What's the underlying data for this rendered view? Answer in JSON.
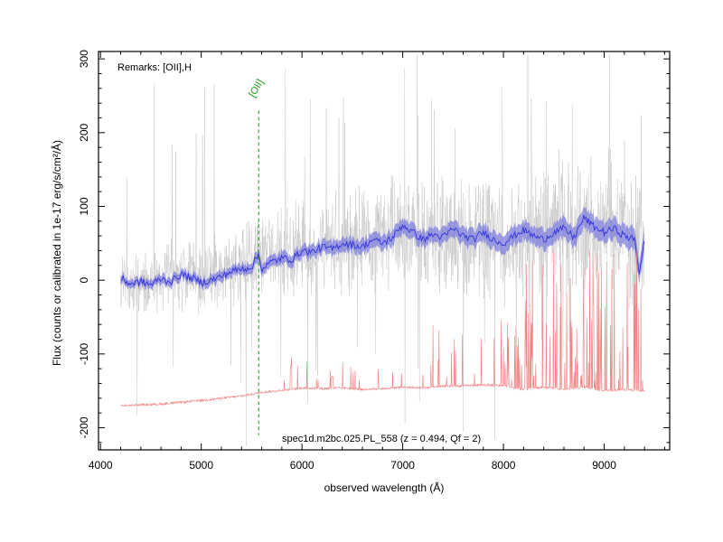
{
  "chart_data": {
    "type": "line",
    "xlabel": "observed wavelength (Å)",
    "ylabel": "Flux (counts or calibrated in 1e-17 erg/s/cm²/Å)",
    "xlim": [
      3980,
      9650
    ],
    "ylim": [
      -230,
      310
    ],
    "x_ticks": [
      4000,
      5000,
      6000,
      7000,
      8000,
      9000
    ],
    "y_ticks": [
      -200,
      -100,
      0,
      100,
      200,
      300
    ],
    "remarks": "Remarks: [OII],H",
    "caption": "spec1d.m2bc.025.PL_558 (z = 0.494, Qf = 2)",
    "line_marker": {
      "label": "[OII]",
      "x": 5570,
      "y_top": 230,
      "y_bottom": -210,
      "color": "#1a9a1a"
    },
    "colors": {
      "raw_flux": "#c8c8c8",
      "smoothed_flux": "#3333dd",
      "uncertainty_band": "#7777dd",
      "sky_spectrum": "#f08080"
    },
    "grid": false,
    "series": [
      {
        "kind": "raw",
        "x": [
          4200,
          4400,
          4600,
          4800,
          5000,
          5200,
          5400,
          5600,
          5800,
          6000,
          6200,
          6400,
          6600,
          6800,
          7000,
          7200,
          7400,
          7600,
          7800,
          8000,
          8200,
          8400,
          8600,
          8800,
          9000,
          9200,
          9400
        ],
        "values": [
          0,
          -5,
          0,
          10,
          5,
          15,
          20,
          30,
          35,
          40,
          50,
          45,
          55,
          60,
          70,
          60,
          65,
          55,
          60,
          50,
          60,
          65,
          70,
          65,
          75,
          70,
          40
        ]
      },
      {
        "kind": "smoothed",
        "x": [
          4200,
          4300,
          4400,
          4500,
          4600,
          4700,
          4800,
          4900,
          5000,
          5100,
          5200,
          5300,
          5400,
          5500,
          5570,
          5600,
          5700,
          5800,
          5900,
          6000,
          6100,
          6200,
          6300,
          6400,
          6500,
          6600,
          6700,
          6800,
          6900,
          7000,
          7100,
          7200,
          7300,
          7400,
          7500,
          7600,
          7700,
          7800,
          7900,
          8000,
          8100,
          8200,
          8300,
          8400,
          8500,
          8600,
          8700,
          8800,
          8900,
          9000,
          9100,
          9200,
          9300,
          9350,
          9400
        ],
        "values": [
          2,
          -5,
          -2,
          -6,
          2,
          -2,
          8,
          3,
          -3,
          0,
          5,
          12,
          15,
          18,
          35,
          15,
          25,
          30,
          28,
          40,
          38,
          45,
          42,
          50,
          48,
          45,
          55,
          50,
          58,
          75,
          65,
          55,
          62,
          58,
          70,
          60,
          55,
          65,
          55,
          50,
          60,
          68,
          60,
          55,
          65,
          70,
          58,
          85,
          72,
          65,
          70,
          60,
          55,
          10,
          60
        ]
      },
      {
        "kind": "sky",
        "x": [
          4200,
          4600,
          5000,
          5400,
          5600,
          5900,
          6000,
          6200,
          6400,
          6600,
          6800,
          7000,
          7200,
          7400,
          7600,
          7800,
          8000,
          8200,
          8400,
          8600,
          8800,
          9000,
          9200,
          9400
        ],
        "values": [
          -170,
          -168,
          -163,
          -157,
          -152,
          -148,
          -146,
          -147,
          -146,
          -148,
          -147,
          -145,
          -146,
          -144,
          -143,
          -142,
          -143,
          -148,
          -145,
          -148,
          -145,
          -150,
          -148,
          -150
        ]
      }
    ]
  }
}
